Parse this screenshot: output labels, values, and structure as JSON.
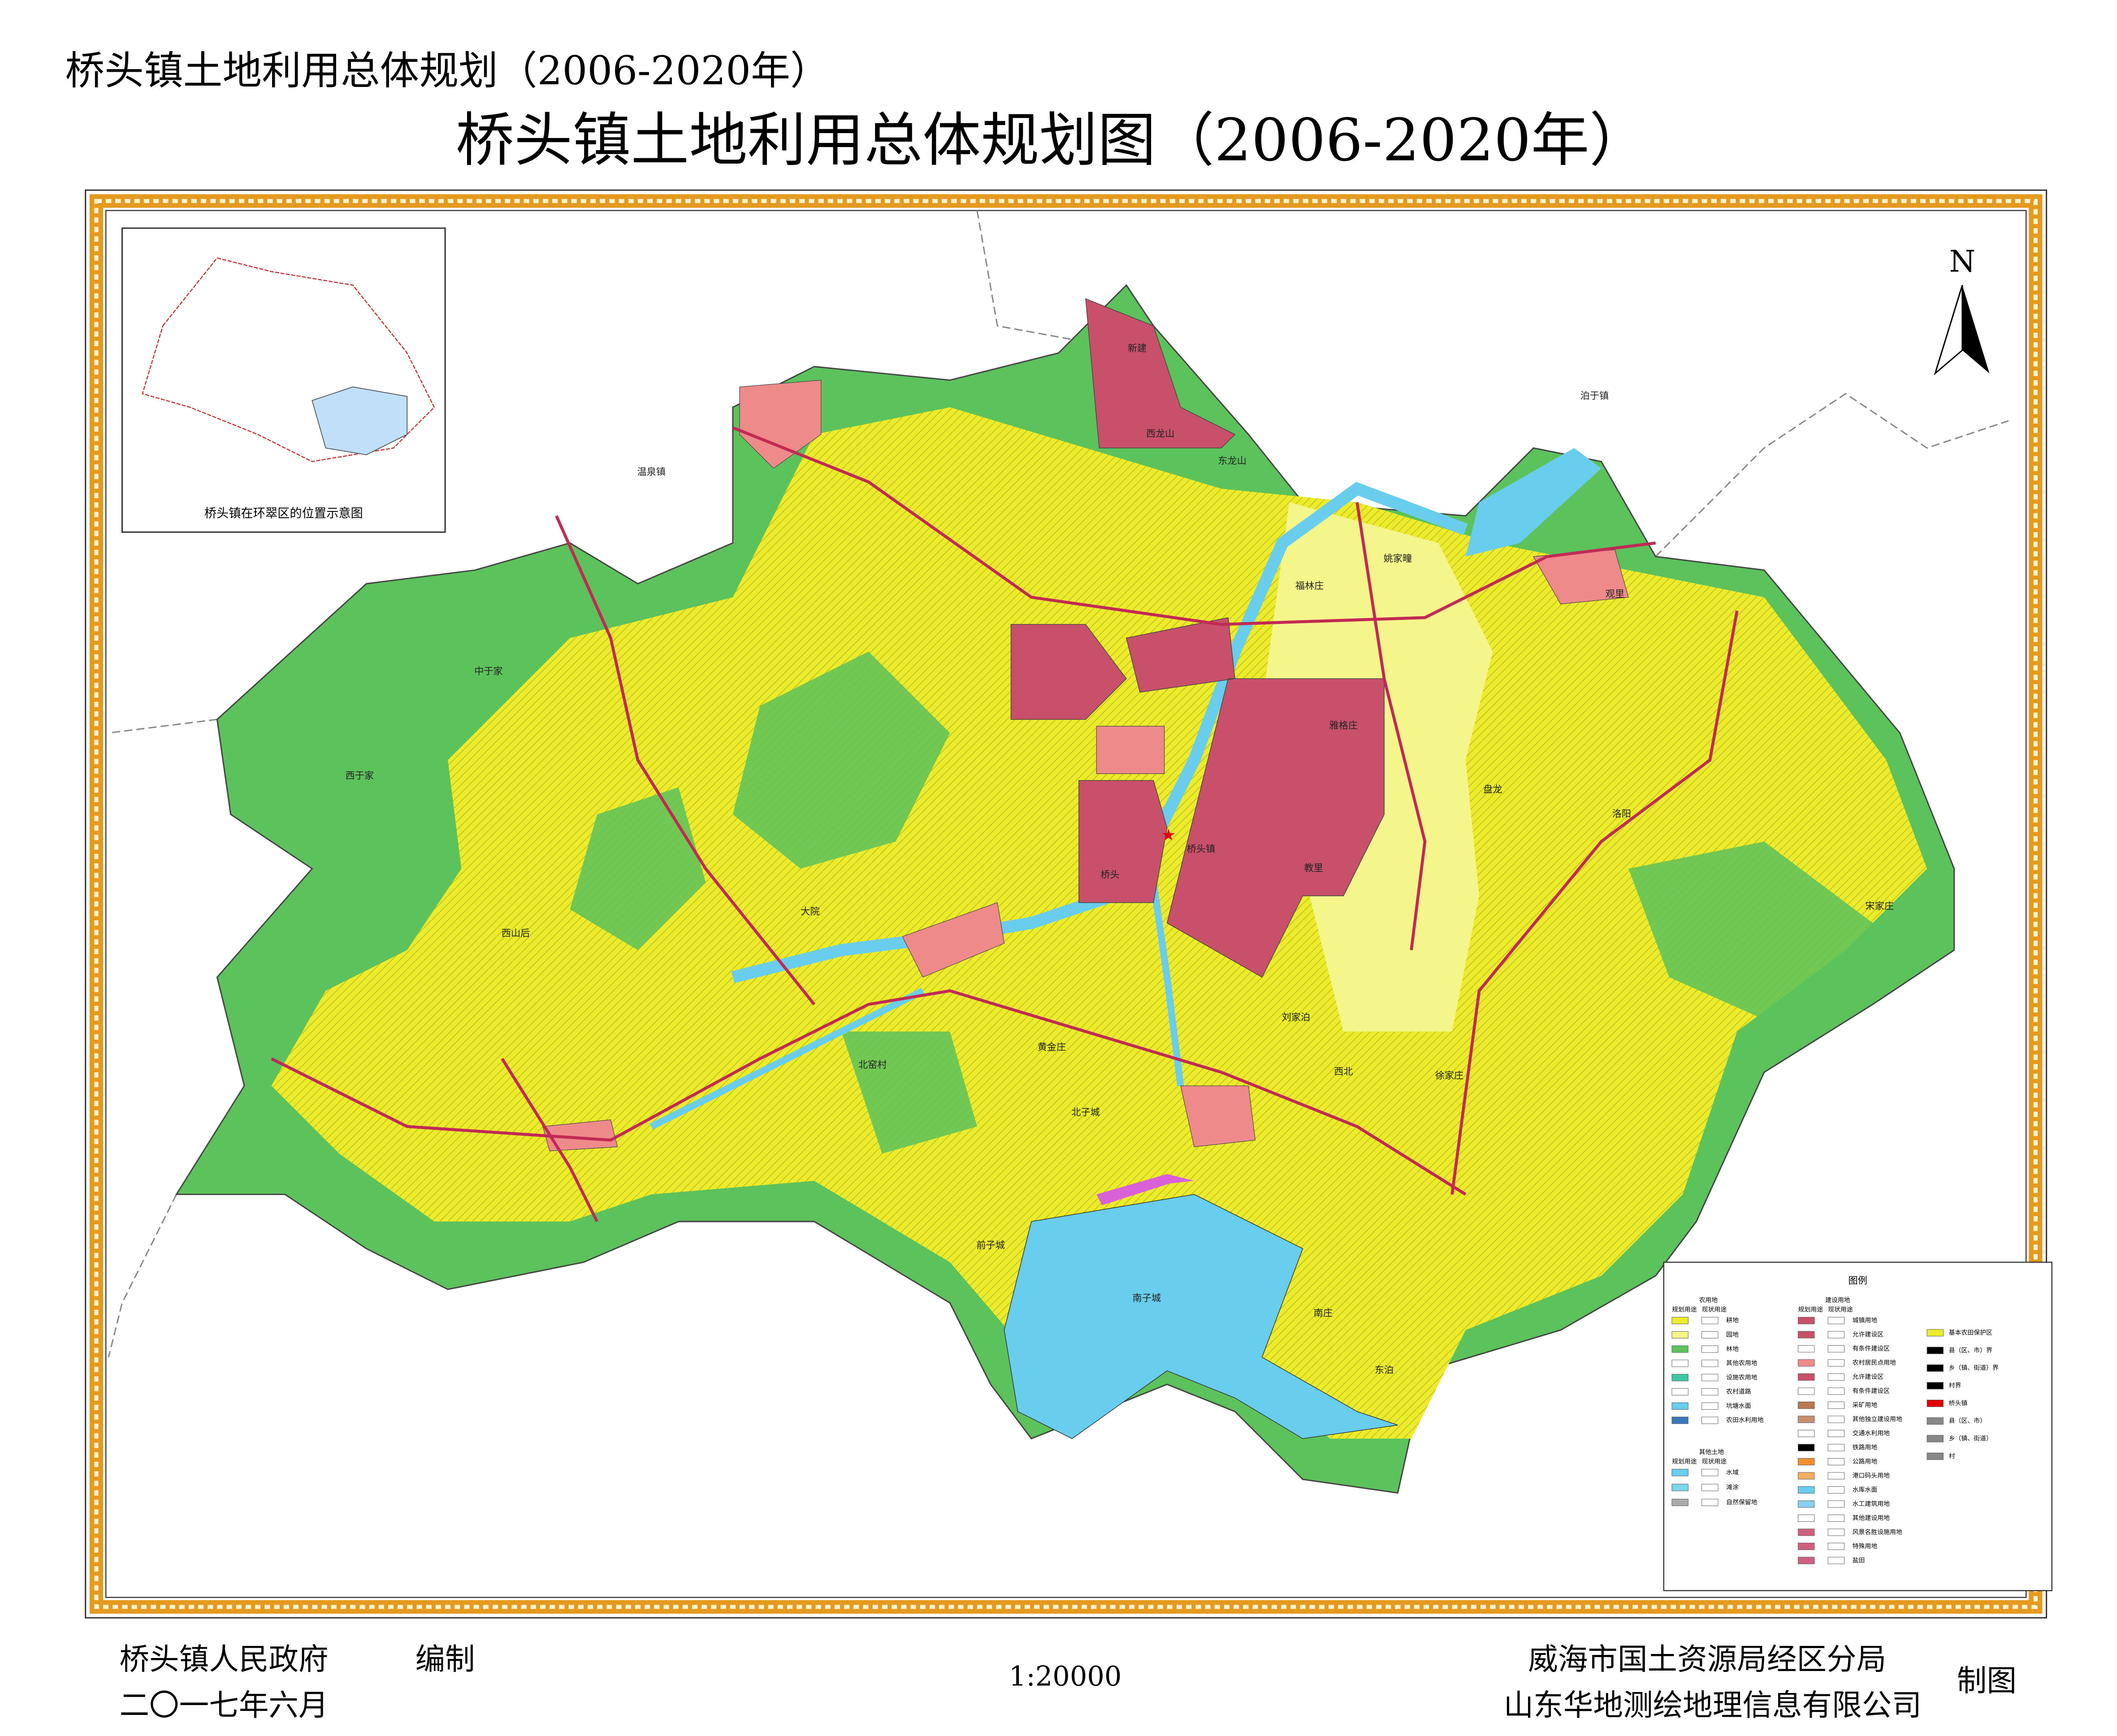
{
  "header": {
    "title": "桥头镇土地利用总体规划（2006-2020年）"
  },
  "map": {
    "title": "桥头镇土地利用总体规划图（2006-2020年）",
    "places": [
      "温泉镇",
      "泊于镇",
      "新建",
      "西龙山",
      "东龙山",
      "观里",
      "姚家疃",
      "福林庄",
      "雅格庄",
      "桥头",
      "桥头镇",
      "教里",
      "盘龙",
      "洛阳",
      "宋家庄",
      "西于家",
      "中于家",
      "西山后",
      "大院",
      "北子城",
      "黄金庄",
      "刘家泊",
      "西北",
      "徐家庄",
      "南子城",
      "前子城",
      "北窑村",
      "南庄",
      "东泊"
    ]
  },
  "inset": {
    "caption": "桥头镇在环翠区的位置示意图"
  },
  "north": {
    "label": "N"
  },
  "legend": {
    "title": "图例",
    "groups": [
      {
        "title": "农用地",
        "columns": [
          "规划用途",
          "现状用途"
        ],
        "items": [
          "耕地",
          "园地",
          "林地",
          "其他农用地",
          "设施农用地",
          "农村道路",
          "坑塘水面",
          "农田水利用地"
        ]
      },
      {
        "title": "其他土地",
        "columns": [
          "规划用途",
          "现状用途"
        ],
        "items": [
          "水域",
          "滩涂",
          "自然保留地"
        ]
      },
      {
        "title": "建设用地",
        "columns": [
          "规划用途",
          "现状用途"
        ],
        "items": [
          "城镇用地",
          "允许建设区",
          "有条件建设区",
          "农村居民点用地",
          "允许建设区",
          "有条件建设区",
          "采矿用地",
          "其他独立建设用地",
          "交通水利用地",
          "铁路用地",
          "公路用地",
          "港口码头用地",
          "水库水面",
          "水工建筑用地",
          "其他建设用地",
          "风景名胜设施用地",
          "特殊用地",
          "盐田"
        ]
      },
      {
        "items": [
          "基本农田保护区",
          "县（区、市）界",
          "乡（镇、街道）界",
          "村界",
          "桥头镇",
          "县（区、市）",
          "乡（镇、街道）",
          "村"
        ]
      }
    ]
  },
  "footer": {
    "compiler": "桥头镇人民政府",
    "compiled": "编制",
    "date": "二〇一七年六月",
    "scale": "1:20000",
    "maker1": "威海市国土资源局经区分局",
    "maker2": "山东华地测绘地理信息有限公司",
    "made": "制图"
  }
}
